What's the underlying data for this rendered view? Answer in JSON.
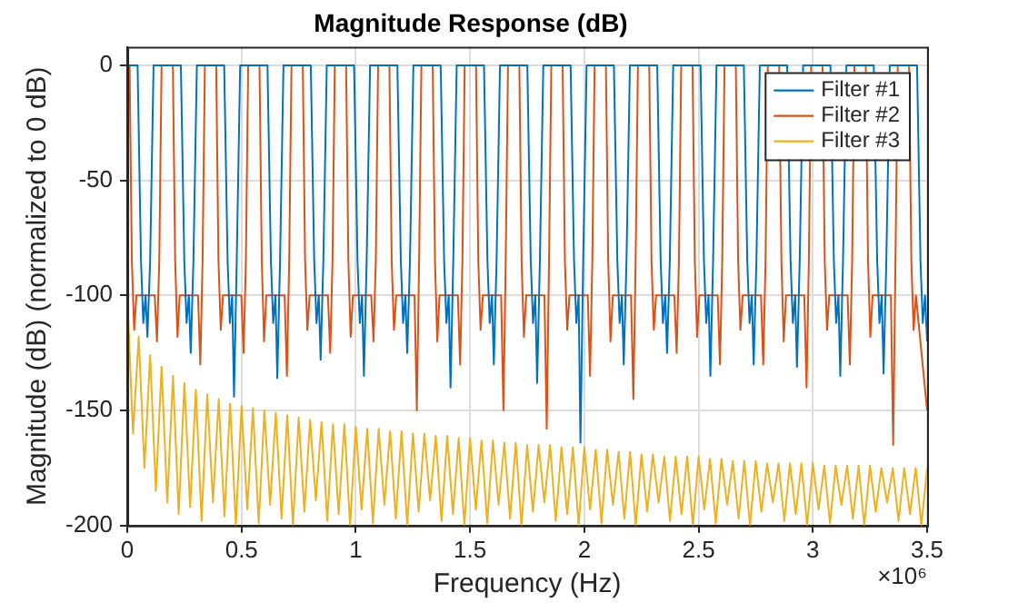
{
  "chart_data": {
    "type": "line",
    "title": "Magnitude Response (dB)",
    "xlabel": "Frequency (Hz)",
    "ylabel": "Magnitude (dB) (normalized to 0 dB)",
    "annotations": [
      "×10⁶"
    ],
    "xlim": [
      0,
      3.5
    ],
    "xticks": [
      0,
      0.5,
      1,
      1.5,
      2,
      2.5,
      3,
      3.5
    ],
    "ylim": [
      -200,
      8
    ],
    "yticks": [
      -200,
      -150,
      -100,
      -50,
      0
    ],
    "grid": true,
    "legend": "top right",
    "marker": "none",
    "line_style": "solid",
    "series": [
      {
        "name": "Filter #1",
        "color": "#0072bd",
        "x": [
          0,
          0.045,
          0.06,
          0.07,
          0.08,
          0.088,
          0.1,
          0.115,
          0.2345,
          0.2495,
          0.2595,
          0.2695,
          0.2775,
          0.2895,
          0.3045,
          0.424,
          0.439,
          0.449,
          0.459,
          0.467,
          0.479,
          0.494,
          0.6135,
          0.6285,
          0.6385,
          0.6485,
          0.6565,
          0.6685,
          0.6835,
          0.803,
          0.818,
          0.828,
          0.838,
          0.846,
          0.858,
          0.873,
          0.9925,
          1.0075,
          1.0175,
          1.0275,
          1.0355,
          1.0475,
          1.0625,
          1.182,
          1.197,
          1.207,
          1.217,
          1.225,
          1.237,
          1.252,
          1.3715,
          1.3865,
          1.3965,
          1.4065,
          1.4145,
          1.4265,
          1.4415,
          1.561,
          1.576,
          1.586,
          1.596,
          1.604,
          1.616,
          1.631,
          1.7505,
          1.7655,
          1.7755,
          1.7855,
          1.7935,
          1.8055,
          1.8205,
          1.94,
          1.955,
          1.965,
          1.975,
          1.983,
          1.995,
          2.01,
          2.1295,
          2.1445,
          2.1545,
          2.1645,
          2.1725,
          2.1845,
          2.1995,
          2.319,
          2.334,
          2.344,
          2.354,
          2.362,
          2.374,
          2.389,
          2.5085,
          2.5235,
          2.5335,
          2.5435,
          2.5515,
          2.5635,
          2.5785,
          2.698,
          2.713,
          2.723,
          2.733,
          2.741,
          2.753,
          2.768,
          2.8875,
          2.9025,
          2.9125,
          2.9225,
          2.9305,
          2.9425,
          2.9575,
          3.077,
          3.092,
          3.102,
          3.112,
          3.12,
          3.132,
          3.147,
          3.2665,
          3.2815,
          3.2915,
          3.3015,
          3.3095,
          3.3215,
          3.3365,
          3.456,
          3.471,
          3.481,
          3.491,
          3.5
        ],
        "values": [
          0,
          0,
          -85,
          -112,
          -100,
          -118,
          -85,
          0,
          0,
          -85,
          -112,
          -100,
          -125,
          -85,
          0,
          0,
          -85,
          -112,
          -100,
          -144,
          -85,
          0,
          0,
          -85,
          -112,
          -100,
          -136,
          -85,
          0,
          0,
          -85,
          -112,
          -100,
          -128,
          -85,
          0,
          0,
          -85,
          -112,
          -100,
          -135,
          -85,
          0,
          0,
          -85,
          -112,
          -100,
          -125,
          -85,
          0,
          0,
          -85,
          -112,
          -100,
          -140,
          -85,
          0,
          0,
          -85,
          -112,
          -100,
          -130,
          -85,
          0,
          0,
          -85,
          -112,
          -100,
          -138,
          -85,
          0,
          0,
          -85,
          -112,
          -100,
          -164,
          -85,
          0,
          0,
          -85,
          -112,
          -100,
          -130,
          -85,
          0,
          0,
          -85,
          -112,
          -100,
          -125,
          -85,
          0,
          0,
          -85,
          -112,
          -100,
          -135,
          -85,
          0,
          0,
          -85,
          -112,
          -100,
          -130,
          -85,
          0,
          0,
          -85,
          -112,
          -100,
          -131,
          -85,
          0,
          0,
          -85,
          -112,
          -100,
          -135,
          -85,
          0,
          0,
          -85,
          -112,
          -100,
          -134,
          -85,
          0,
          0,
          -85,
          -112,
          -100,
          -120
        ]
      },
      {
        "name": "Filter #2",
        "color": "#d95319",
        "x": [
          0,
          0.01,
          0.02,
          0.03,
          0.04,
          0.12,
          0.13,
          0.14,
          0.15,
          0.1995,
          0.2095,
          0.2195,
          0.2295,
          0.3095,
          0.3195,
          0.3295,
          0.3395,
          0.389,
          0.399,
          0.409,
          0.419,
          0.499,
          0.509,
          0.519,
          0.529,
          0.5785,
          0.5885,
          0.5985,
          0.6085,
          0.6885,
          0.6985,
          0.7085,
          0.7185,
          0.768,
          0.778,
          0.788,
          0.798,
          0.878,
          0.888,
          0.898,
          0.908,
          0.9575,
          0.9675,
          0.9775,
          0.9875,
          1.0675,
          1.0775,
          1.0875,
          1.0975,
          1.147,
          1.157,
          1.167,
          1.177,
          1.257,
          1.267,
          1.277,
          1.287,
          1.3365,
          1.3465,
          1.3565,
          1.3665,
          1.4465,
          1.4565,
          1.4665,
          1.4765,
          1.526,
          1.536,
          1.546,
          1.556,
          1.636,
          1.646,
          1.656,
          1.666,
          1.7155,
          1.7255,
          1.7355,
          1.7455,
          1.8255,
          1.8355,
          1.8455,
          1.8555,
          1.905,
          1.915,
          1.925,
          1.935,
          2.015,
          2.025,
          2.035,
          2.045,
          2.0945,
          2.1045,
          2.1145,
          2.1245,
          2.2045,
          2.2145,
          2.2245,
          2.2345,
          2.284,
          2.294,
          2.304,
          2.314,
          2.394,
          2.404,
          2.414,
          2.424,
          2.4735,
          2.4835,
          2.4935,
          2.5035,
          2.5835,
          2.5935,
          2.6035,
          2.6135,
          2.663,
          2.673,
          2.683,
          2.693,
          2.773,
          2.783,
          2.793,
          2.803,
          2.8525,
          2.8625,
          2.8725,
          2.8825,
          2.9625,
          2.9725,
          2.9825,
          2.9925,
          3.042,
          3.052,
          3.062,
          3.072,
          3.152,
          3.162,
          3.172,
          3.182,
          3.2315,
          3.2415,
          3.2515,
          3.2615,
          3.3415,
          3.3515,
          3.3615,
          3.3715,
          3.421,
          3.431,
          3.441,
          3.451,
          3.5
        ],
        "values": [
          0,
          0,
          -85,
          -115,
          -100,
          -100,
          -120,
          -85,
          0,
          0,
          -85,
          -118,
          -100,
          -100,
          -130,
          -85,
          0,
          0,
          -85,
          -115,
          -100,
          -100,
          -125,
          -85,
          0,
          0,
          -85,
          -120,
          -100,
          -100,
          -135,
          -85,
          0,
          0,
          -85,
          -115,
          -100,
          -100,
          -125,
          -85,
          0,
          0,
          -85,
          -118,
          -100,
          -100,
          -120,
          -85,
          0,
          0,
          -85,
          -115,
          -100,
          -100,
          -150,
          -85,
          0,
          0,
          -85,
          -120,
          -100,
          -100,
          -130,
          -85,
          0,
          0,
          -85,
          -115,
          -100,
          -100,
          -150,
          -85,
          0,
          0,
          -85,
          -118,
          -100,
          -100,
          -158,
          -85,
          0,
          0,
          -85,
          -115,
          -100,
          -100,
          -135,
          -85,
          0,
          0,
          -85,
          -120,
          -100,
          -100,
          -145,
          -85,
          0,
          0,
          -85,
          -115,
          -100,
          -100,
          -125,
          -85,
          0,
          0,
          -85,
          -118,
          -100,
          -100,
          -130,
          -85,
          0,
          0,
          -85,
          -115,
          -100,
          -100,
          -130,
          -85,
          0,
          0,
          -85,
          -120,
          -100,
          -100,
          -140,
          -85,
          0,
          0,
          -85,
          -115,
          -100,
          -100,
          -130,
          -85,
          0,
          0,
          -85,
          -118,
          -100,
          -100,
          -165,
          -85,
          0,
          0,
          -85,
          -115,
          -100,
          -150
        ]
      },
      {
        "name": "Filter #3",
        "color": "#edb120",
        "x": [
          0,
          0.025,
          0.05,
          0.075,
          0.1,
          0.125,
          0.15,
          0.175,
          0.2,
          0.225,
          0.25,
          0.275,
          0.3,
          0.325,
          0.35,
          0.375,
          0.4,
          0.425,
          0.45,
          0.475,
          0.5,
          0.525,
          0.55,
          0.575,
          0.6,
          0.625,
          0.65,
          0.675,
          0.7,
          0.725,
          0.75,
          0.775,
          0.8,
          0.825,
          0.85,
          0.875,
          0.9,
          0.925,
          0.95,
          0.975,
          1,
          1.025,
          1.05,
          1.075,
          1.1,
          1.125,
          1.15,
          1.175,
          1.2,
          1.225,
          1.25,
          1.275,
          1.3,
          1.325,
          1.35,
          1.375,
          1.4,
          1.425,
          1.45,
          1.475,
          1.5,
          1.525,
          1.55,
          1.575,
          1.6,
          1.625,
          1.65,
          1.675,
          1.7,
          1.725,
          1.75,
          1.775,
          1.8,
          1.825,
          1.85,
          1.875,
          1.9,
          1.925,
          1.95,
          1.975,
          2,
          2.025,
          2.05,
          2.075,
          2.1,
          2.125,
          2.15,
          2.175,
          2.2,
          2.225,
          2.25,
          2.275,
          2.3,
          2.325,
          2.35,
          2.375,
          2.4,
          2.425,
          2.45,
          2.475,
          2.5,
          2.525,
          2.55,
          2.575,
          2.6,
          2.625,
          2.65,
          2.675,
          2.7,
          2.725,
          2.75,
          2.775,
          2.8,
          2.825,
          2.85,
          2.875,
          2.9,
          2.925,
          2.95,
          2.975,
          3,
          3.025,
          3.05,
          3.075,
          3.1,
          3.125,
          3.15,
          3.175,
          3.2,
          3.225,
          3.25,
          3.275,
          3.3,
          3.325,
          3.35,
          3.375,
          3.4,
          3.425,
          3.45,
          3.475,
          3.5
        ],
        "values": [
          -100,
          -160,
          -118,
          -175,
          -126,
          -185,
          -131,
          -190,
          -135,
          -195,
          -138,
          -192,
          -141,
          -198,
          -143,
          -190,
          -145,
          -196,
          -147,
          -200,
          -148,
          -193,
          -149,
          -199,
          -150,
          -191,
          -151,
          -197,
          -152,
          -200,
          -153,
          -194,
          -154,
          -189,
          -155,
          -198,
          -156,
          -195,
          -156,
          -200,
          -157,
          -193,
          -158,
          -199,
          -158,
          -191,
          -159,
          -197,
          -159,
          -200,
          -160,
          -194,
          -160,
          -189,
          -161,
          -198,
          -161,
          -195,
          -162,
          -200,
          -162,
          -193,
          -163,
          -199,
          -163,
          -191,
          -164,
          -197,
          -164,
          -200,
          -165,
          -194,
          -165,
          -190,
          -165,
          -198,
          -166,
          -195,
          -166,
          -200,
          -166,
          -193,
          -167,
          -199,
          -167,
          -191,
          -168,
          -197,
          -168,
          -200,
          -169,
          -194,
          -169,
          -190,
          -170,
          -198,
          -170,
          -195,
          -170,
          -200,
          -170,
          -193,
          -171,
          -199,
          -171,
          -191,
          -172,
          -197,
          -172,
          -200,
          -172,
          -194,
          -173,
          -190,
          -173,
          -198,
          -173,
          -195,
          -173,
          -200,
          -173,
          -193,
          -174,
          -199,
          -174,
          -191,
          -174,
          -197,
          -174,
          -200,
          -174,
          -194,
          -175,
          -190,
          -175,
          -198,
          -175,
          -195,
          -175,
          -200,
          -175
        ]
      }
    ]
  }
}
